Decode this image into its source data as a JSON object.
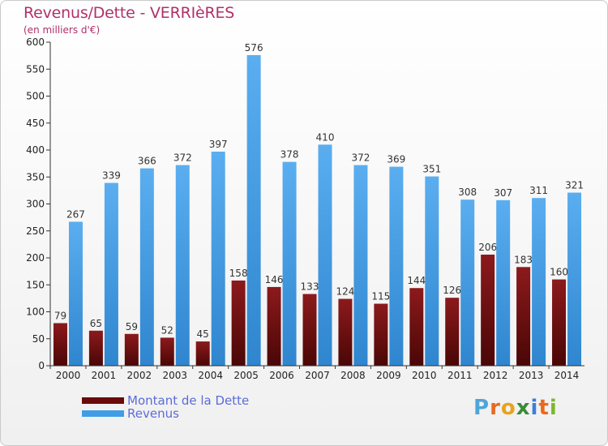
{
  "header": {
    "title": "Revenus/Dette - VERRIèRES",
    "subtitle": "(en milliers d'€)"
  },
  "colors": {
    "dette": "#7a0f12",
    "revenus": "#3f9ee6",
    "title": "#b0306a",
    "legend_text": "#5b6cd8"
  },
  "legend": {
    "items": [
      {
        "label": "Montant de la Dette",
        "color": "#6b0a0a"
      },
      {
        "label": "Revenus",
        "color": "#3f9ee6"
      }
    ]
  },
  "logo": {
    "letters": [
      "P",
      "r",
      "o",
      "x",
      "i",
      "t",
      "i"
    ],
    "colors": [
      "#4ea6d8",
      "#e86a1e",
      "#e8a31e",
      "#3a8a3a",
      "#3b7fd8",
      "#e86a1e",
      "#7ab82e"
    ]
  },
  "chart_data": {
    "type": "bar",
    "title": "Revenus/Dette - VERRIèRES",
    "subtitle": "(en milliers d'€)",
    "categories": [
      "2000",
      "2001",
      "2002",
      "2003",
      "2004",
      "2005",
      "2006",
      "2007",
      "2008",
      "2009",
      "2010",
      "2011",
      "2012",
      "2013",
      "2014"
    ],
    "series": [
      {
        "name": "Montant de la Dette",
        "values": [
          79,
          65,
          59,
          52,
          45,
          158,
          146,
          133,
          124,
          115,
          144,
          126,
          206,
          183,
          160
        ]
      },
      {
        "name": "Revenus",
        "values": [
          267,
          339,
          366,
          372,
          397,
          576,
          378,
          410,
          372,
          369,
          351,
          308,
          307,
          311,
          321
        ]
      }
    ],
    "ylim": [
      0,
      600
    ],
    "yticks": [
      0,
      50,
      100,
      150,
      200,
      250,
      300,
      350,
      400,
      450,
      500,
      550,
      600
    ],
    "grid": false,
    "legend_position": "bottom-left"
  }
}
